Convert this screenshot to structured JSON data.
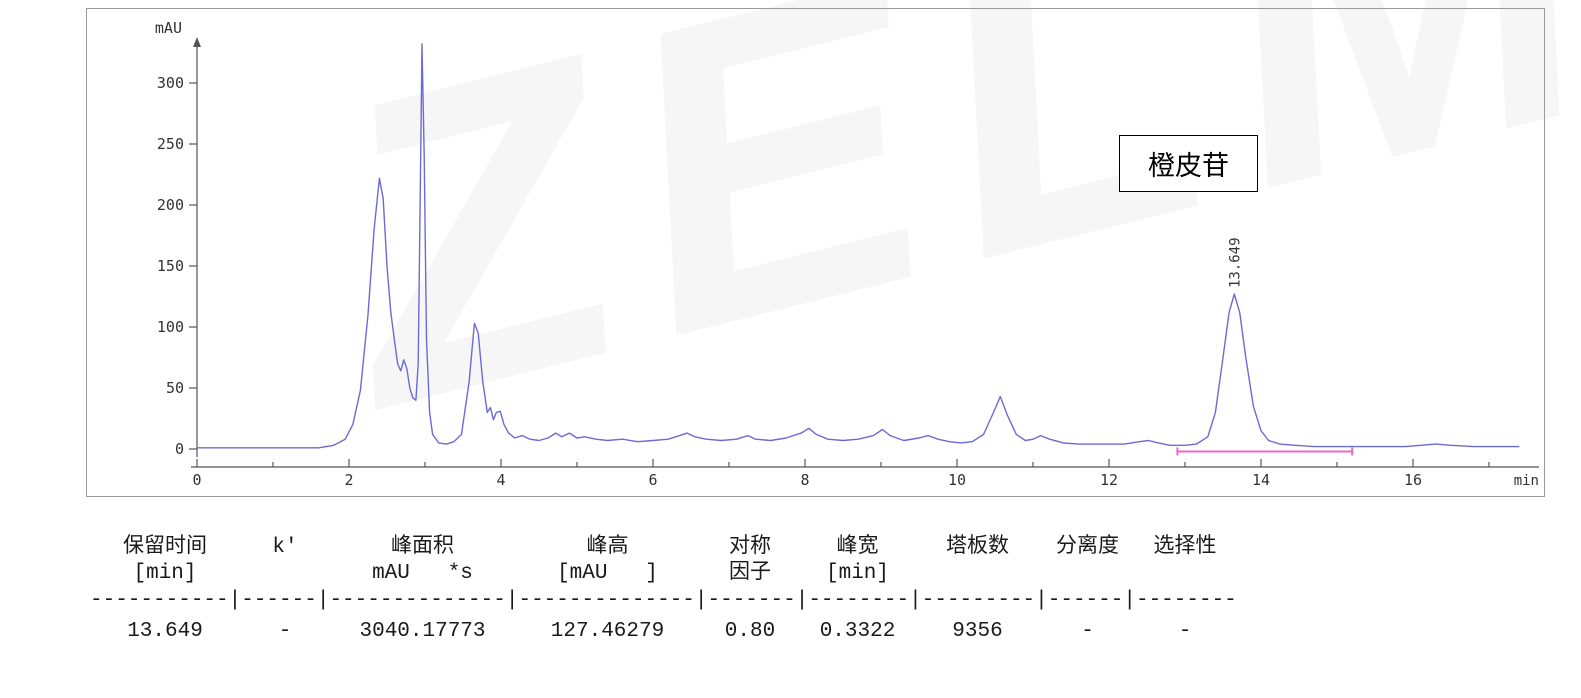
{
  "watermark": {
    "text": "ZELM"
  },
  "chart": {
    "y_axis_label": "mAU",
    "x_axis_label": "min",
    "annotation_label": "橙皮苷",
    "peak_time_label": "13.649",
    "trace_color": "#6b6bd6",
    "baseline_color": "#e868c8",
    "axis_color": "#555555",
    "frame_color": "#9a9a9a",
    "y_ticks": [
      0,
      50,
      100,
      150,
      200,
      250,
      300
    ],
    "x_ticks": [
      0,
      2,
      4,
      6,
      8,
      10,
      12,
      14,
      16
    ]
  },
  "chart_data": {
    "type": "line",
    "title": "",
    "xlabel": "min",
    "ylabel": "mAU",
    "xlim": [
      0,
      17.6
    ],
    "ylim": [
      -15,
      345
    ],
    "x_ticks": [
      0,
      2,
      4,
      6,
      8,
      10,
      12,
      14,
      16
    ],
    "y_ticks": [
      0,
      50,
      100,
      150,
      200,
      250,
      300
    ],
    "legend": "off",
    "grid": "off",
    "series": [
      {
        "name": "detector-signal",
        "color": "#6b6bd6",
        "points": [
          [
            0,
            1
          ],
          [
            0.6,
            1
          ],
          [
            1.2,
            1
          ],
          [
            1.6,
            1
          ],
          [
            1.8,
            3
          ],
          [
            1.95,
            8
          ],
          [
            2.05,
            20
          ],
          [
            2.15,
            48
          ],
          [
            2.25,
            110
          ],
          [
            2.33,
            180
          ],
          [
            2.4,
            222
          ],
          [
            2.45,
            205
          ],
          [
            2.5,
            150
          ],
          [
            2.55,
            112
          ],
          [
            2.6,
            88
          ],
          [
            2.64,
            70
          ],
          [
            2.68,
            64
          ],
          [
            2.72,
            73
          ],
          [
            2.76,
            66
          ],
          [
            2.8,
            50
          ],
          [
            2.84,
            42
          ],
          [
            2.88,
            40
          ],
          [
            2.91,
            70
          ],
          [
            2.94,
            220
          ],
          [
            2.96,
            332
          ],
          [
            2.99,
            240
          ],
          [
            3.02,
            90
          ],
          [
            3.06,
            30
          ],
          [
            3.1,
            12
          ],
          [
            3.18,
            5
          ],
          [
            3.28,
            4
          ],
          [
            3.38,
            6
          ],
          [
            3.48,
            12
          ],
          [
            3.58,
            55
          ],
          [
            3.65,
            103
          ],
          [
            3.7,
            95
          ],
          [
            3.76,
            55
          ],
          [
            3.82,
            30
          ],
          [
            3.86,
            34
          ],
          [
            3.9,
            24
          ],
          [
            3.94,
            30
          ],
          [
            3.99,
            31
          ],
          [
            4.04,
            20
          ],
          [
            4.1,
            13
          ],
          [
            4.18,
            9
          ],
          [
            4.28,
            11
          ],
          [
            4.38,
            8
          ],
          [
            4.5,
            7
          ],
          [
            4.62,
            9
          ],
          [
            4.72,
            13
          ],
          [
            4.8,
            10
          ],
          [
            4.9,
            13
          ],
          [
            5,
            9
          ],
          [
            5.1,
            10
          ],
          [
            5.25,
            8
          ],
          [
            5.4,
            7
          ],
          [
            5.6,
            8
          ],
          [
            5.8,
            6
          ],
          [
            6,
            7
          ],
          [
            6.2,
            8
          ],
          [
            6.35,
            11
          ],
          [
            6.45,
            13
          ],
          [
            6.55,
            10
          ],
          [
            6.7,
            8
          ],
          [
            6.9,
            7
          ],
          [
            7.1,
            8
          ],
          [
            7.25,
            11
          ],
          [
            7.35,
            8
          ],
          [
            7.55,
            7
          ],
          [
            7.75,
            9
          ],
          [
            7.95,
            13
          ],
          [
            8.05,
            17
          ],
          [
            8.15,
            12
          ],
          [
            8.3,
            8
          ],
          [
            8.5,
            7
          ],
          [
            8.7,
            8
          ],
          [
            8.9,
            11
          ],
          [
            9.02,
            16
          ],
          [
            9.12,
            11
          ],
          [
            9.3,
            7
          ],
          [
            9.5,
            9
          ],
          [
            9.62,
            11
          ],
          [
            9.75,
            8
          ],
          [
            9.9,
            6
          ],
          [
            10.05,
            5
          ],
          [
            10.2,
            6
          ],
          [
            10.35,
            12
          ],
          [
            10.48,
            30
          ],
          [
            10.57,
            43
          ],
          [
            10.66,
            28
          ],
          [
            10.78,
            12
          ],
          [
            10.9,
            7
          ],
          [
            11,
            8
          ],
          [
            11.1,
            11
          ],
          [
            11.22,
            8
          ],
          [
            11.4,
            5
          ],
          [
            11.6,
            4
          ],
          [
            11.8,
            4
          ],
          [
            12,
            4
          ],
          [
            12.2,
            4
          ],
          [
            12.4,
            6
          ],
          [
            12.52,
            7
          ],
          [
            12.65,
            5
          ],
          [
            12.8,
            3
          ],
          [
            13,
            3
          ],
          [
            13.15,
            4
          ],
          [
            13.3,
            10
          ],
          [
            13.4,
            30
          ],
          [
            13.5,
            75
          ],
          [
            13.58,
            112
          ],
          [
            13.649,
            127
          ],
          [
            13.72,
            112
          ],
          [
            13.8,
            75
          ],
          [
            13.9,
            35
          ],
          [
            14,
            15
          ],
          [
            14.1,
            7
          ],
          [
            14.25,
            4
          ],
          [
            14.45,
            3
          ],
          [
            14.7,
            2
          ],
          [
            15,
            2
          ],
          [
            15.3,
            2
          ],
          [
            15.6,
            2
          ],
          [
            15.9,
            2
          ],
          [
            16.1,
            3
          ],
          [
            16.3,
            4
          ],
          [
            16.5,
            3
          ],
          [
            16.8,
            2
          ],
          [
            17.1,
            2
          ],
          [
            17.4,
            2
          ]
        ]
      }
    ],
    "integration_baseline": {
      "x1": 12.9,
      "x2": 15.2,
      "y": -2,
      "color": "#e868c8"
    },
    "annotations": [
      {
        "text": "13.649",
        "x": 13.649,
        "y": 127,
        "rotated": true,
        "type": "peak-retention-time"
      },
      {
        "text": "橙皮苷",
        "type": "compound-label-box"
      }
    ],
    "peaks": [
      {
        "retention_time_min": "13.649",
        "k_prime": "-",
        "area_mau_s": "3040.17773",
        "height_mau": "127.46279",
        "symmetry_factor": "0.80",
        "peak_width_min": "0.3322",
        "plates": "9356",
        "resolution": "-",
        "selectivity": "-"
      }
    ]
  },
  "table": {
    "header_row1": [
      "保留时间",
      "k'",
      "峰面积",
      "峰高",
      "对称",
      "峰宽",
      "塔板数",
      "分离度",
      "选择性"
    ],
    "header_row2": [
      "[min]",
      "",
      "mAU   *s",
      "[mAU   ]",
      "因子",
      "[min]",
      "",
      "",
      ""
    ],
    "separator": "-----------|------|--------------|--------------|-------|--------|---------|------|--------",
    "row": [
      "13.649",
      "-",
      "3040.17773",
      "127.46279",
      "0.80",
      "0.3322",
      "9356",
      "-",
      "-"
    ]
  }
}
